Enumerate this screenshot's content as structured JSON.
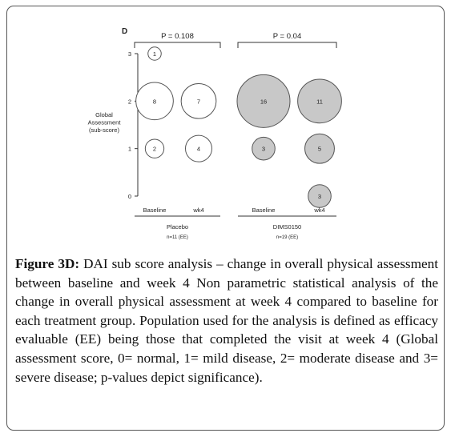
{
  "chart_data": {
    "type": "scatter",
    "panel_label": "D",
    "ylabel_lines": [
      "Global",
      "Assessment",
      "(sub-score)"
    ],
    "y_ticks": [
      0,
      1,
      2,
      3
    ],
    "ylim": [
      0,
      3
    ],
    "groups": [
      {
        "name": "Placebo",
        "n_label": "n=11 (EE)",
        "p_label": "P = 0.108",
        "timepoints": [
          "Baseline",
          "wk4"
        ],
        "bubbles": [
          {
            "x": "Baseline",
            "y": 3,
            "count": 1
          },
          {
            "x": "Baseline",
            "y": 2,
            "count": 8
          },
          {
            "x": "Baseline",
            "y": 1,
            "count": 2
          },
          {
            "x": "wk4",
            "y": 2,
            "count": 7
          },
          {
            "x": "wk4",
            "y": 1,
            "count": 4
          }
        ]
      },
      {
        "name": "DIMS0150",
        "n_label": "n=19 (EE)",
        "p_label": "P = 0.04",
        "timepoints": [
          "Baseline",
          "wk4"
        ],
        "bubbles": [
          {
            "x": "Baseline",
            "y": 2,
            "count": 16
          },
          {
            "x": "Baseline",
            "y": 1,
            "count": 3
          },
          {
            "x": "wk4",
            "y": 2,
            "count": 11
          },
          {
            "x": "wk4",
            "y": 1,
            "count": 5
          },
          {
            "x": "wk4",
            "y": 0,
            "count": 3
          }
        ]
      }
    ],
    "colors": {
      "Placebo": "#ffffff",
      "DIMS0150": "#c8c8c8",
      "stroke": "#555555"
    }
  },
  "caption": {
    "label": "Figure 3D:",
    "text": " DAI sub score analysis – change in overall physical assessment between baseline and week 4 Non parametric statistical analysis of the change in overall physical assessment at week 4 compared to baseline for each treatment group. Population used for the analysis is defined as efficacy evaluable (EE) being those that completed the visit at week 4 (Global assessment score, 0= normal, 1= mild disease, 2= moderate disease and 3= severe disease; p-values depict significance)."
  }
}
